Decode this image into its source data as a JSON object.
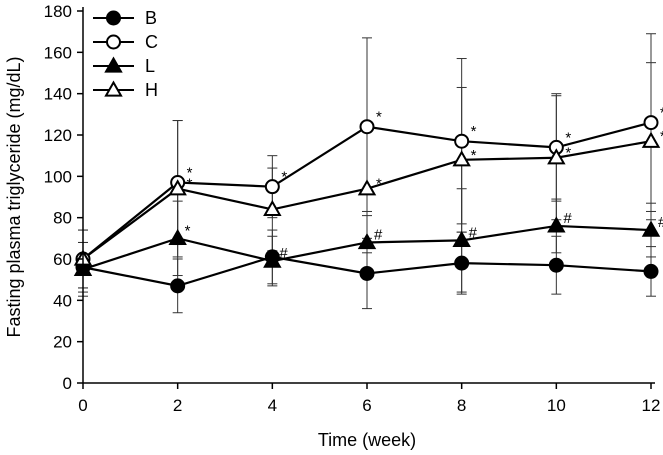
{
  "chart_data": {
    "type": "line",
    "title": "",
    "xlabel": "Time (week)",
    "ylabel": "Fasting plasma triglyceride (mg/dL)",
    "xlim": [
      0,
      12
    ],
    "ylim": [
      0,
      180
    ],
    "x_ticks": [
      "0",
      "2",
      "4",
      "6",
      "8",
      "10",
      "12"
    ],
    "y_ticks": [
      "0",
      "20",
      "40",
      "60",
      "80",
      "100",
      "120",
      "140",
      "160",
      "180"
    ],
    "grid": false,
    "legend_position": "top-left",
    "x": [
      0,
      2,
      4,
      6,
      8,
      10,
      12
    ],
    "series": [
      {
        "name": "B",
        "marker": "filled-circle",
        "values": [
          56,
          47,
          61,
          53,
          58,
          57,
          54
        ],
        "error": [
          12,
          13,
          13,
          17,
          15,
          14,
          12
        ],
        "annotations": [
          "",
          "",
          "",
          "",
          "",
          "",
          ""
        ]
      },
      {
        "name": "C",
        "marker": "open-circle",
        "values": [
          60,
          97,
          95,
          124,
          117,
          114,
          126
        ],
        "error": [
          14,
          30,
          15,
          43,
          40,
          26,
          43
        ],
        "annotations": [
          "",
          "*",
          "*",
          "*",
          "*",
          "*",
          "*"
        ]
      },
      {
        "name": "L",
        "marker": "filled-triangle",
        "values": [
          55,
          70,
          59,
          68,
          69,
          76,
          74
        ],
        "error": [
          13,
          18,
          12,
          15,
          25,
          13,
          13
        ],
        "annotations": [
          "",
          "*",
          "#",
          "#",
          "#",
          "#",
          "#"
        ]
      },
      {
        "name": "H",
        "marker": "open-triangle",
        "values": [
          60,
          94,
          84,
          94,
          108,
          109,
          117
        ],
        "error": [
          14,
          33,
          20,
          31,
          35,
          30,
          38
        ],
        "annotations": [
          "",
          "*",
          "",
          "*",
          "*",
          "*",
          "*"
        ]
      }
    ]
  }
}
